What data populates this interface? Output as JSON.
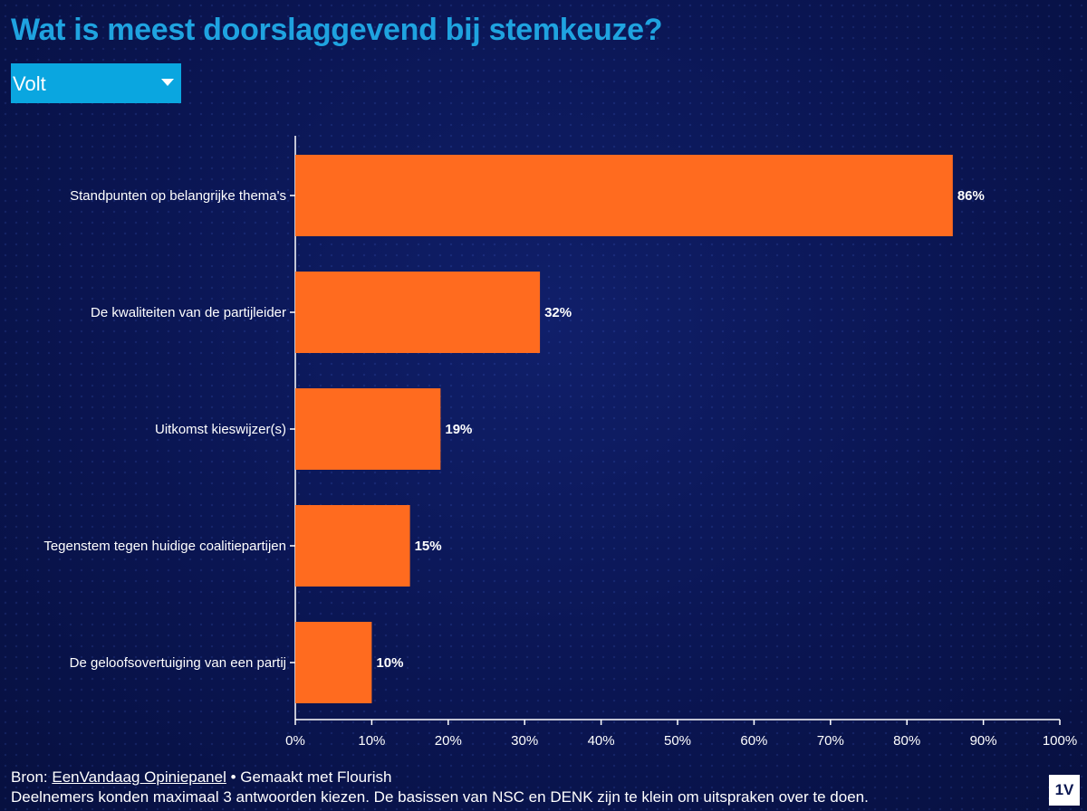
{
  "title": "Wat is meest doorslaggevend bij stemkeuze?",
  "filter": {
    "selected": "Volt"
  },
  "chart_data": {
    "type": "bar",
    "orientation": "horizontal",
    "categories": [
      "Standpunten op belangrijke thema's",
      "De kwaliteiten van de partijleider",
      "Uitkomst kieswijzer(s)",
      "Tegenstem tegen huidige coalitiepartijen",
      "De geloofsovertuiging van een partij"
    ],
    "values": [
      86,
      32,
      19,
      15,
      10
    ],
    "value_labels": [
      "86%",
      "32%",
      "19%",
      "15%",
      "10%"
    ],
    "xlim": [
      0,
      100
    ],
    "x_ticks": [
      0,
      10,
      20,
      30,
      40,
      50,
      60,
      70,
      80,
      90,
      100
    ],
    "x_tick_labels": [
      "0%",
      "10%",
      "20%",
      "30%",
      "40%",
      "50%",
      "60%",
      "70%",
      "80%",
      "90%",
      "100%"
    ],
    "bar_color": "#ff6b1f",
    "grid": false
  },
  "footer": {
    "source_prefix": "Bron: ",
    "source_link": "EenVandaag Opiniepanel",
    "made_with": " • Gemaakt met Flourish",
    "note": "Deelnemers konden maximaal 3 antwoorden kiezen. De basissen van NSC en DENK zijn te klein om uitspraken over te doen."
  },
  "logo_text": "1V"
}
